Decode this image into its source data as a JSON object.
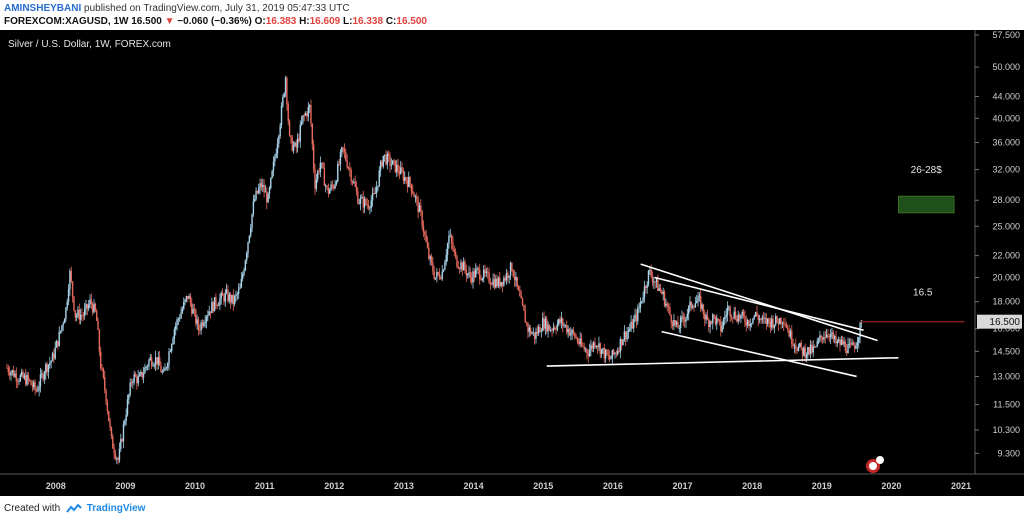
{
  "header": {
    "author": "AMINSHEYBANI",
    "published_text": "published on TradingView.com, July 31, 2019 05:47:33 UTC",
    "symbol": "FOREXCOM:XAGUSD, 1W",
    "last": "16.500",
    "arrow": "▼",
    "change": "−0.060 (−0.36%)",
    "o_label": "O:",
    "o": "16.383",
    "h_label": "H:",
    "h": "16.609",
    "l_label": "L:",
    "l": "16.338",
    "c_label": "C:",
    "c": "16.500"
  },
  "footer": {
    "created_with": "Created with",
    "brand": "TradingView"
  },
  "chart_data": {
    "type": "candlestick",
    "title": "Silver / U.S. Dollar, 1W, FOREX.com",
    "y_scale": "log",
    "ylim": [
      8.5,
      57.5
    ],
    "xlim": [
      2007.2,
      2021.2
    ],
    "y_ticks": [
      "57.500",
      "50.000",
      "44.000",
      "40.000",
      "36.000",
      "32.000",
      "28.000",
      "25.000",
      "22.000",
      "20.000",
      "18.000",
      "16.000",
      "14.500",
      "13.000",
      "11.500",
      "10.300",
      "9.300"
    ],
    "x_ticks": [
      "2008",
      "2009",
      "2010",
      "2011",
      "2012",
      "2013",
      "2014",
      "2015",
      "2016",
      "2017",
      "2018",
      "2019",
      "2020",
      "2021"
    ],
    "last_price_label": "16.500",
    "price_path": [
      [
        2007.3,
        13.5
      ],
      [
        2007.45,
        13.0
      ],
      [
        2007.6,
        12.8
      ],
      [
        2007.72,
        12.2
      ],
      [
        2007.85,
        13.5
      ],
      [
        2007.95,
        14.0
      ],
      [
        2008.05,
        15.5
      ],
      [
        2008.15,
        17.5
      ],
      [
        2008.2,
        20.5
      ],
      [
        2008.28,
        17.0
      ],
      [
        2008.4,
        17.0
      ],
      [
        2008.5,
        18.0
      ],
      [
        2008.58,
        17.0
      ],
      [
        2008.65,
        13.5
      ],
      [
        2008.72,
        12.0
      ],
      [
        2008.8,
        9.8
      ],
      [
        2008.9,
        9.0
      ],
      [
        2009.0,
        11.0
      ],
      [
        2009.1,
        13.0
      ],
      [
        2009.2,
        12.8
      ],
      [
        2009.35,
        14.0
      ],
      [
        2009.45,
        14.0
      ],
      [
        2009.55,
        13.0
      ],
      [
        2009.7,
        16.0
      ],
      [
        2009.9,
        18.5
      ],
      [
        2010.05,
        16.0
      ],
      [
        2010.15,
        17.0
      ],
      [
        2010.3,
        18.0
      ],
      [
        2010.45,
        18.5
      ],
      [
        2010.55,
        18.0
      ],
      [
        2010.65,
        19.0
      ],
      [
        2010.75,
        23.0
      ],
      [
        2010.85,
        28.0
      ],
      [
        2010.95,
        30.0
      ],
      [
        2011.05,
        28.0
      ],
      [
        2011.15,
        34.0
      ],
      [
        2011.25,
        42.0
      ],
      [
        2011.3,
        48.0
      ],
      [
        2011.36,
        36.0
      ],
      [
        2011.45,
        35.0
      ],
      [
        2011.55,
        40.0
      ],
      [
        2011.65,
        42.0
      ],
      [
        2011.72,
        30.0
      ],
      [
        2011.8,
        33.0
      ],
      [
        2011.9,
        29.0
      ],
      [
        2012.0,
        30.0
      ],
      [
        2012.12,
        35.0
      ],
      [
        2012.22,
        32.0
      ],
      [
        2012.35,
        28.0
      ],
      [
        2012.48,
        27.5
      ],
      [
        2012.58,
        28.5
      ],
      [
        2012.7,
        34.0
      ],
      [
        2012.8,
        33.0
      ],
      [
        2012.92,
        32.0
      ],
      [
        2013.0,
        31.0
      ],
      [
        2013.1,
        30.0
      ],
      [
        2013.25,
        26.0
      ],
      [
        2013.35,
        22.0
      ],
      [
        2013.45,
        20.0
      ],
      [
        2013.55,
        20.5
      ],
      [
        2013.65,
        24.0
      ],
      [
        2013.75,
        21.5
      ],
      [
        2013.85,
        21.0
      ],
      [
        2013.95,
        20.0
      ],
      [
        2014.05,
        20.5
      ],
      [
        2014.2,
        20.0
      ],
      [
        2014.35,
        19.5
      ],
      [
        2014.45,
        20.0
      ],
      [
        2014.55,
        21.0
      ],
      [
        2014.65,
        18.5
      ],
      [
        2014.78,
        16.0
      ],
      [
        2014.88,
        15.5
      ],
      [
        2015.0,
        16.5
      ],
      [
        2015.1,
        16.0
      ],
      [
        2015.25,
        16.5
      ],
      [
        2015.35,
        16.0
      ],
      [
        2015.45,
        15.5
      ],
      [
        2015.55,
        14.8
      ],
      [
        2015.65,
        14.5
      ],
      [
        2015.75,
        15.2
      ],
      [
        2015.85,
        14.5
      ],
      [
        2015.95,
        14.0
      ],
      [
        2016.05,
        14.5
      ],
      [
        2016.15,
        15.5
      ],
      [
        2016.25,
        16.0
      ],
      [
        2016.35,
        17.0
      ],
      [
        2016.45,
        19.0
      ],
      [
        2016.52,
        20.5
      ],
      [
        2016.62,
        19.5
      ],
      [
        2016.72,
        18.5
      ],
      [
        2016.82,
        17.0
      ],
      [
        2016.92,
        16.0
      ],
      [
        2017.05,
        17.0
      ],
      [
        2017.15,
        18.0
      ],
      [
        2017.25,
        18.0
      ],
      [
        2017.35,
        16.5
      ],
      [
        2017.45,
        16.8
      ],
      [
        2017.55,
        16.0
      ],
      [
        2017.65,
        17.5
      ],
      [
        2017.75,
        17.0
      ],
      [
        2017.85,
        16.8
      ],
      [
        2017.95,
        16.5
      ],
      [
        2018.05,
        17.0
      ],
      [
        2018.15,
        16.5
      ],
      [
        2018.25,
        16.5
      ],
      [
        2018.35,
        16.5
      ],
      [
        2018.45,
        16.8
      ],
      [
        2018.55,
        15.5
      ],
      [
        2018.65,
        14.8
      ],
      [
        2018.72,
        14.5
      ],
      [
        2018.8,
        14.5
      ],
      [
        2018.9,
        14.6
      ],
      [
        2019.0,
        15.5
      ],
      [
        2019.1,
        15.8
      ],
      [
        2019.2,
        15.0
      ],
      [
        2019.3,
        15.0
      ],
      [
        2019.4,
        14.6
      ],
      [
        2019.48,
        15.0
      ],
      [
        2019.55,
        16.0
      ],
      [
        2019.58,
        16.5
      ]
    ],
    "drawings": [
      {
        "type": "trendline",
        "from": [
          2016.4,
          21.2
        ],
        "to": [
          2019.8,
          15.2
        ]
      },
      {
        "type": "trendline",
        "from": [
          2016.6,
          20.0
        ],
        "to": [
          2019.6,
          15.9
        ]
      },
      {
        "type": "trendline",
        "from": [
          2016.7,
          15.8
        ],
        "to": [
          2019.5,
          13.0
        ]
      },
      {
        "type": "trendline",
        "from": [
          2015.05,
          13.6
        ],
        "to": [
          2020.1,
          14.1
        ]
      },
      {
        "type": "horizontal",
        "y": 16.5,
        "from": 2019.55,
        "to": 2021.05
      },
      {
        "type": "zone",
        "y_from": 26.5,
        "y_to": 28.5,
        "from": 2020.1,
        "to": 2020.9
      }
    ],
    "annotations": [
      {
        "text": "26-28$",
        "x": 2020.5,
        "y": 31.5
      },
      {
        "text": "16.5",
        "x": 2020.45,
        "y": 18.5
      }
    ],
    "colors": {
      "background": "#000000",
      "up": "#a8d4ea",
      "down": "#e86b5f",
      "trendline": "#ffffff",
      "resistance": "#8b1a1a",
      "target_zone": "#1f4f1a",
      "axis_text": "#cfcfcf",
      "last_price_bg": "#d9d9d9"
    }
  }
}
